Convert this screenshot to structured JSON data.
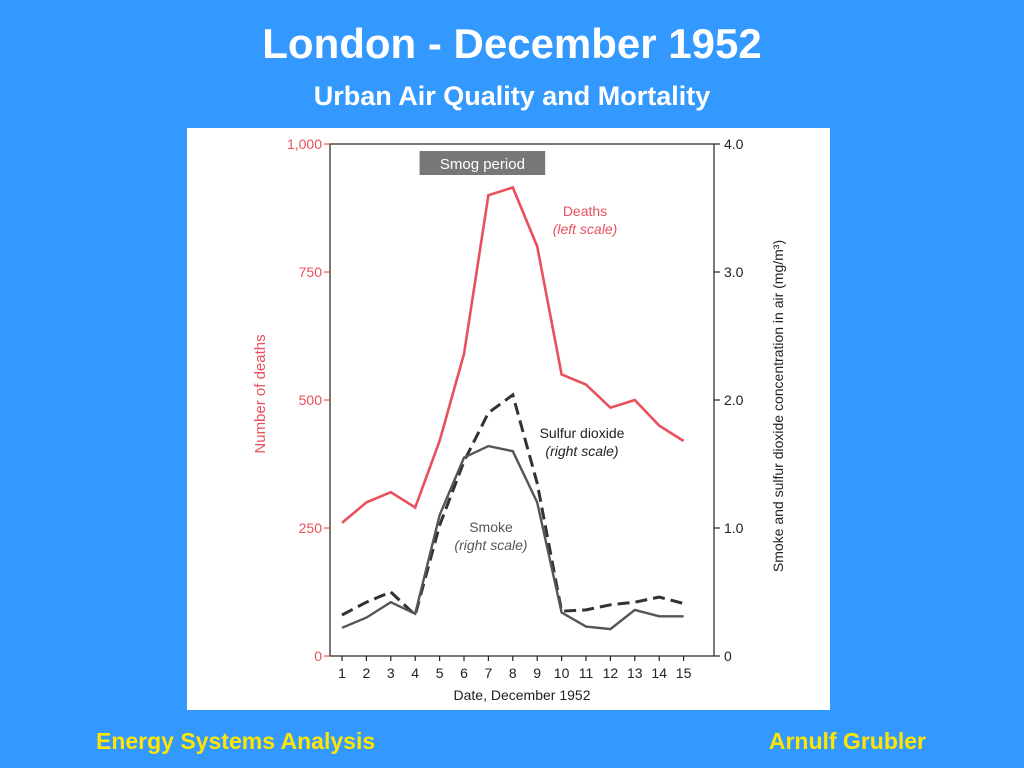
{
  "slide": {
    "title": "London - December 1952",
    "subtitle": "Urban Air Quality and Mortality",
    "footer_left": "Energy Systems Analysis",
    "footer_right": "Arnulf Grubler"
  },
  "colors": {
    "background": "#3399FF",
    "footer_text": "#FFE600",
    "deaths": "#E8505B",
    "sulfur_dioxide": "#333333",
    "smoke": "#555555"
  },
  "chart_data": {
    "type": "line",
    "x": [
      1,
      2,
      3,
      4,
      5,
      6,
      7,
      8,
      9,
      10,
      11,
      12,
      13,
      14,
      15
    ],
    "x_tick_labels": [
      "1",
      "2",
      "3",
      "4",
      "5",
      "6",
      "7",
      "8",
      "9",
      "10",
      "11",
      "12",
      "13",
      "14",
      "15"
    ],
    "xlabel": "Date, December 1952",
    "ylabel_left": "Number of deaths",
    "ylabel_right": "Smoke and sulfur dioxide concentration in air (mg/m³)",
    "ylim_left": [
      0,
      1000
    ],
    "ylim_right": [
      0,
      4.0
    ],
    "left_tick_labels": [
      "0",
      "250",
      "500",
      "750",
      "1,000"
    ],
    "left_tick_values": [
      0,
      250,
      500,
      750,
      1000
    ],
    "right_tick_labels": [
      "0",
      "1.0",
      "2.0",
      "3.0",
      "4.0"
    ],
    "right_tick_values": [
      0,
      1.0,
      2.0,
      3.0,
      4.0
    ],
    "annotation": "Smog period",
    "smog_period": [
      5,
      9
    ],
    "grid": false,
    "series": [
      {
        "name": "Deaths",
        "scale_label": "(left scale)",
        "axis": "left",
        "style": "solid",
        "values": [
          260,
          300,
          320,
          290,
          420,
          590,
          900,
          915,
          800,
          550,
          530,
          485,
          500,
          450,
          420
        ]
      },
      {
        "name": "Sulfur dioxide",
        "scale_label": "(right scale)",
        "axis": "right",
        "style": "dashed",
        "values": [
          0.32,
          0.42,
          0.5,
          0.32,
          1.02,
          1.52,
          1.9,
          2.04,
          1.35,
          0.35,
          0.36,
          0.4,
          0.42,
          0.46,
          0.41
        ]
      },
      {
        "name": "Smoke",
        "scale_label": "(right scale)",
        "axis": "right",
        "style": "solid",
        "values": [
          0.22,
          0.3,
          0.42,
          0.33,
          1.1,
          1.55,
          1.64,
          1.6,
          1.2,
          0.34,
          0.23,
          0.21,
          0.36,
          0.31,
          0.31
        ]
      }
    ]
  }
}
